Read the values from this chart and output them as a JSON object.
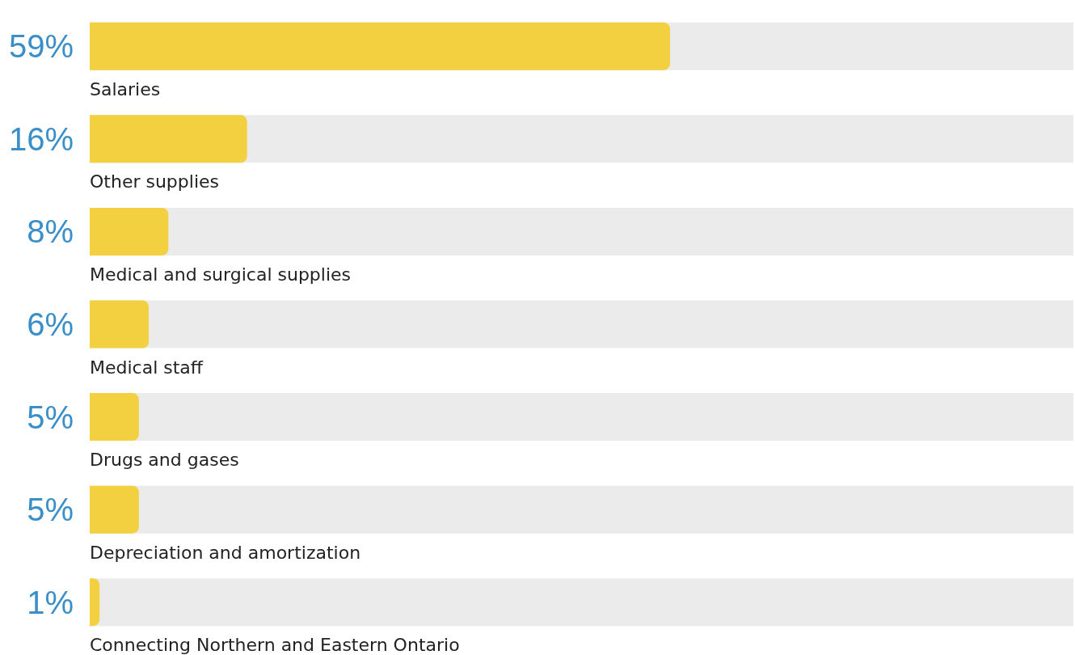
{
  "chart_data": {
    "type": "bar",
    "orientation": "horizontal",
    "categories": [
      "Salaries",
      "Other supplies",
      "Medical and surgical supplies",
      "Medical staff",
      "Drugs and gases",
      "Depreciation and amortization",
      "Connecting Northern and Eastern Ontario"
    ],
    "values": [
      59,
      16,
      8,
      6,
      5,
      5,
      1
    ],
    "value_labels": [
      "59%",
      "16%",
      "8%",
      "6%",
      "5%",
      "5%",
      "1%"
    ],
    "color": "#f2d03f",
    "xlim": [
      0,
      100
    ],
    "tick_labels": "y"
  }
}
